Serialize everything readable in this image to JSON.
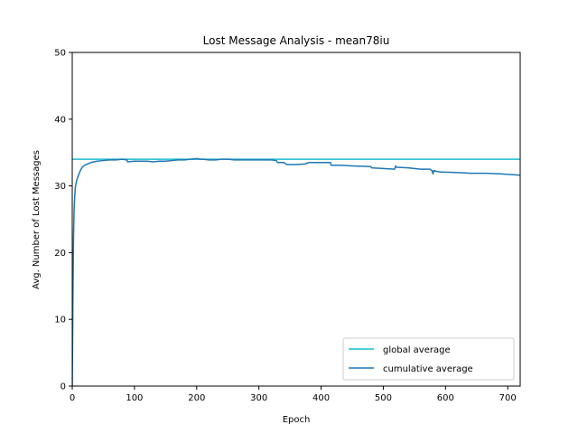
{
  "chart_data": {
    "type": "line",
    "title": "Lost Message Analysis - mean78iu",
    "xlabel": "Epoch",
    "ylabel": "Avg. Number of Lost Messages",
    "xlim": [
      0,
      720
    ],
    "ylim": [
      0,
      50
    ],
    "xticks": [
      0,
      100,
      200,
      300,
      400,
      500,
      600,
      700
    ],
    "yticks": [
      0,
      10,
      20,
      30,
      40,
      50
    ],
    "grid": false,
    "legend_position": "lower-right",
    "series": [
      {
        "name": "global average",
        "color": "#17becf",
        "x": [
          0,
          720
        ],
        "y": [
          34.0,
          34.0
        ]
      },
      {
        "name": "cumulative average",
        "color": "#1f77b4",
        "x": [
          0,
          1,
          2,
          3,
          4,
          5,
          7,
          10,
          13,
          16,
          20,
          25,
          30,
          40,
          50,
          60,
          70,
          80,
          88,
          89,
          100,
          110,
          120,
          130,
          140,
          150,
          160,
          170,
          180,
          190,
          200,
          205,
          210,
          220,
          230,
          240,
          250,
          251,
          260,
          280,
          300,
          320,
          328,
          330,
          340,
          345,
          360,
          375,
          380,
          390,
          410,
          415,
          416,
          430,
          450,
          480,
          481,
          500,
          518,
          520,
          521,
          540,
          560,
          575,
          578,
          580,
          581,
          585,
          590,
          620,
          640,
          660,
          665,
          690,
          720
        ],
        "y": [
          0.0,
          12.0,
          22.0,
          26.5,
          28.5,
          29.8,
          30.8,
          31.6,
          32.3,
          32.8,
          33.1,
          33.3,
          33.5,
          33.7,
          33.8,
          33.9,
          33.9,
          34.0,
          33.9,
          33.6,
          33.7,
          33.7,
          33.7,
          33.6,
          33.7,
          33.7,
          33.8,
          33.9,
          33.9,
          34.0,
          34.1,
          34.0,
          34.0,
          33.9,
          33.9,
          34.0,
          34.0,
          34.0,
          33.9,
          33.9,
          33.9,
          33.9,
          33.8,
          33.5,
          33.5,
          33.2,
          33.2,
          33.3,
          33.5,
          33.5,
          33.5,
          33.5,
          33.1,
          33.1,
          33.0,
          32.9,
          32.7,
          32.6,
          32.5,
          33.0,
          32.8,
          32.7,
          32.5,
          32.5,
          32.3,
          31.8,
          32.3,
          32.2,
          32.1,
          32.0,
          31.9,
          31.9,
          31.9,
          31.8,
          31.6
        ]
      }
    ]
  }
}
